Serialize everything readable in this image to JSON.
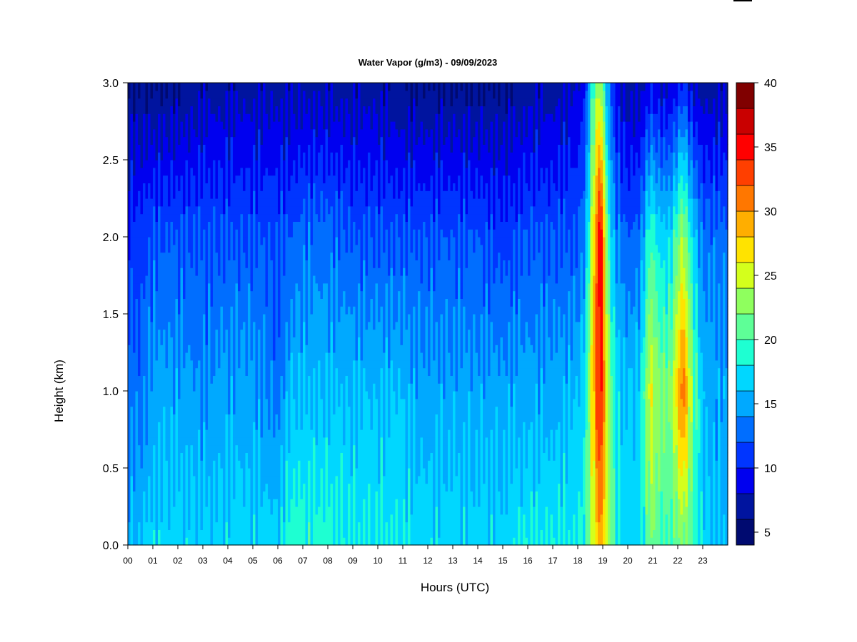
{
  "chart_data": {
    "type": "heatmap",
    "title": "Water Vapor (g/m3) - 09/09/2023",
    "xlabel": "Hours (UTC)",
    "ylabel": "Height (km)",
    "xlim": [
      0,
      24
    ],
    "ylim": [
      0,
      3
    ],
    "x_ticks": [
      0,
      1,
      2,
      3,
      4,
      5,
      6,
      7,
      8,
      9,
      10,
      11,
      12,
      13,
      14,
      15,
      16,
      17,
      18,
      19,
      20,
      21,
      22,
      23
    ],
    "x_tick_labels": [
      "00",
      "01",
      "02",
      "03",
      "04",
      "05",
      "06",
      "07",
      "08",
      "09",
      "10",
      "11",
      "12",
      "13",
      "14",
      "15",
      "16",
      "17",
      "18",
      "19",
      "20",
      "21",
      "22",
      "23"
    ],
    "y_ticks": [
      0.0,
      0.5,
      1.0,
      1.5,
      2.0,
      2.5,
      3.0
    ],
    "y_tick_labels": [
      "0.0",
      "0.5",
      "1.0",
      "1.5",
      "2.0",
      "2.5",
      "3.0"
    ],
    "colorbar": {
      "min": 4,
      "max": 40,
      "levels": [
        4,
        6,
        8,
        10,
        12,
        14,
        16,
        18,
        20,
        22,
        24,
        26,
        28,
        30,
        32,
        34,
        36,
        38,
        40
      ],
      "colors": [
        "#000a70",
        "#00149f",
        "#0000ef",
        "#0035ff",
        "#006eff",
        "#00a9ff",
        "#00d7ff",
        "#1effd2",
        "#5eff97",
        "#8fff5e",
        "#d4ff1c",
        "#ffe300",
        "#ffae00",
        "#ff7700",
        "#ff3f00",
        "#ff0000",
        "#c90000",
        "#800000"
      ],
      "tick_values": [
        5,
        10,
        15,
        20,
        25,
        30,
        35,
        40
      ],
      "tick_labels": [
        "5",
        "10",
        "15",
        "20",
        "25",
        "30",
        "35",
        "40"
      ]
    },
    "series_description_values": {
      "hours": [
        0,
        0.5,
        1,
        2,
        3,
        4,
        5,
        6,
        6.5,
        7,
        8,
        9,
        10,
        11,
        11.5,
        12,
        13,
        14,
        15,
        16,
        17,
        18,
        18.3,
        18.6,
        18.9,
        19.2,
        19.5,
        20,
        20.5,
        20.9,
        21.3,
        21.7,
        22.2,
        22.6,
        23,
        23.5,
        23.9
      ],
      "surface_gm3": [
        16,
        16,
        17,
        17,
        17,
        17,
        17,
        17,
        19,
        19,
        19,
        18,
        18,
        18,
        17,
        17,
        17,
        17,
        17,
        18,
        18,
        18,
        19,
        24,
        30,
        24,
        19,
        17,
        17,
        22,
        20,
        20,
        22,
        20,
        17,
        16,
        16
      ],
      "at_1km_gm3": [
        13,
        13,
        15,
        15,
        14,
        15,
        15,
        13,
        16,
        16,
        16,
        16,
        16,
        16,
        15,
        15,
        15,
        15,
        15,
        15,
        15,
        16,
        18,
        28,
        36,
        24,
        18,
        16,
        17,
        26,
        22,
        22,
        32,
        22,
        16,
        15,
        15
      ],
      "at_2km_gm3": [
        11,
        11,
        12,
        12,
        12,
        12,
        12,
        12,
        12,
        13,
        13,
        12,
        12,
        12,
        12,
        12,
        12,
        12,
        11,
        12,
        12,
        12,
        14,
        26,
        37,
        20,
        14,
        12,
        13,
        20,
        17,
        17,
        24,
        17,
        13,
        13,
        13
      ],
      "at_3km_gm3": [
        6,
        6,
        6,
        6,
        7,
        7,
        7,
        7,
        7,
        7,
        7,
        7,
        7,
        6,
        6,
        6,
        6,
        6,
        6,
        7,
        7,
        8,
        10,
        20,
        24,
        14,
        9,
        7,
        7,
        9,
        8,
        8,
        10,
        8,
        7,
        7,
        7
      ]
    }
  }
}
